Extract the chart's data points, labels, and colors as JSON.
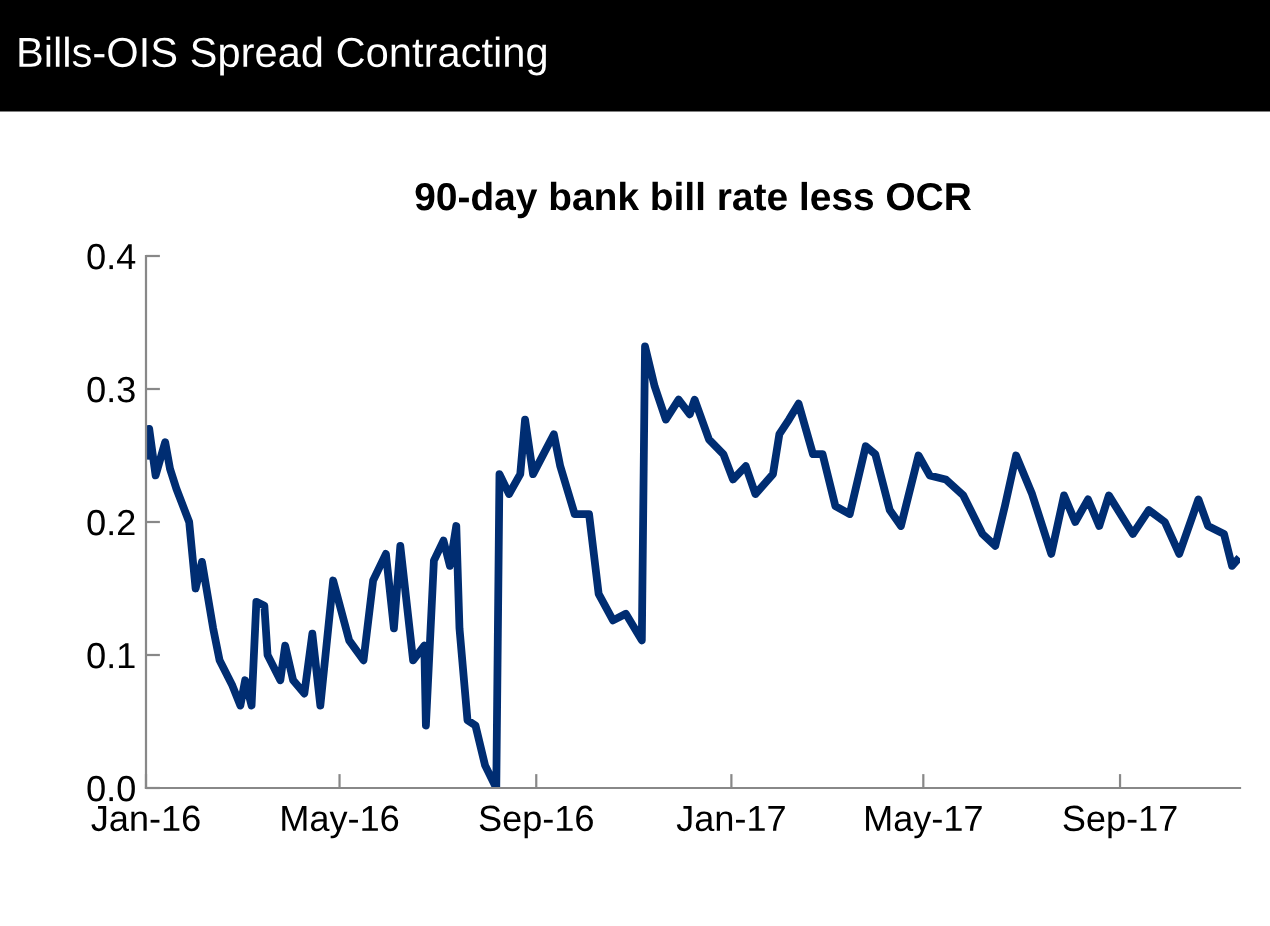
{
  "chart_data": {
    "type": "line",
    "title": "Bills-OIS Spread Contracting",
    "subtitle": "90-day bank bill rate less OCR",
    "x": [
      "2016-01-01",
      "2016-01-03",
      "2016-01-07",
      "2016-01-13",
      "2016-01-16",
      "2016-01-20",
      "2016-01-28",
      "2016-02-01",
      "2016-02-05",
      "2016-02-12",
      "2016-02-16",
      "2016-02-24",
      "2016-02-29",
      "2016-03-03",
      "2016-03-07",
      "2016-03-10",
      "2016-03-15",
      "2016-03-17",
      "2016-03-25",
      "2016-03-28",
      "2016-04-02",
      "2016-04-09",
      "2016-04-14",
      "2016-04-19",
      "2016-04-27",
      "2016-05-07",
      "2016-05-16",
      "2016-05-22",
      "2016-05-30",
      "2016-06-04",
      "2016-06-08",
      "2016-06-16",
      "2016-06-23",
      "2016-06-24",
      "2016-06-29",
      "2016-07-05",
      "2016-07-09",
      "2016-07-13",
      "2016-07-15",
      "2016-07-20",
      "2016-07-25",
      "2016-07-31",
      "2016-08-07",
      "2016-08-09",
      "2016-08-15",
      "2016-08-22",
      "2016-08-25",
      "2016-08-30",
      "2016-09-12",
      "2016-09-16",
      "2016-09-25",
      "2016-10-04",
      "2016-10-10",
      "2016-10-19",
      "2016-10-27",
      "2016-11-06",
      "2016-11-08",
      "2016-11-14",
      "2016-11-21",
      "2016-11-29",
      "2016-12-06",
      "2016-12-09",
      "2016-12-18",
      "2016-12-27",
      "2017-01-02",
      "2017-01-10",
      "2017-01-16",
      "2017-01-27",
      "2017-01-31",
      "2017-02-06",
      "2017-02-12",
      "2017-02-21",
      "2017-02-27",
      "2017-03-07",
      "2017-03-16",
      "2017-03-26",
      "2017-04-01",
      "2017-04-10",
      "2017-04-17",
      "2017-04-28",
      "2017-05-05",
      "2017-05-15",
      "2017-05-26",
      "2017-06-07",
      "2017-06-15",
      "2017-06-21",
      "2017-06-28",
      "2017-07-08",
      "2017-07-20",
      "2017-07-28",
      "2017-08-04",
      "2017-08-12",
      "2017-08-19",
      "2017-08-25",
      "2017-09-09",
      "2017-09-19",
      "2017-09-29",
      "2017-10-08",
      "2017-10-20",
      "2017-10-26",
      "2017-11-05",
      "2017-11-10",
      "2017-11-13"
    ],
    "series": [
      {
        "color": "#002d72",
        "values": [
          0.25,
          0.27,
          0.235,
          0.26,
          0.24,
          0.225,
          0.2,
          0.15,
          0.17,
          0.12,
          0.096,
          0.077,
          0.062,
          0.081,
          0.062,
          0.14,
          0.137,
          0.1,
          0.081,
          0.107,
          0.081,
          0.071,
          0.116,
          0.062,
          0.156,
          0.111,
          0.096,
          0.156,
          0.176,
          0.12,
          0.182,
          0.096,
          0.107,
          0.047,
          0.171,
          0.186,
          0.167,
          0.197,
          0.12,
          0.051,
          0.047,
          0.017,
          0.0,
          0.236,
          0.221,
          0.236,
          0.277,
          0.236,
          0.266,
          0.242,
          0.206,
          0.206,
          0.146,
          0.126,
          0.131,
          0.111,
          0.332,
          0.302,
          0.277,
          0.292,
          0.281,
          0.292,
          0.262,
          0.251,
          0.232,
          0.242,
          0.221,
          0.236,
          0.266,
          0.277,
          0.289,
          0.251,
          0.251,
          0.212,
          0.206,
          0.257,
          0.251,
          0.209,
          0.197,
          0.25,
          0.235,
          0.232,
          0.22,
          0.191,
          0.182,
          0.212,
          0.25,
          0.221,
          0.176,
          0.22,
          0.2,
          0.217,
          0.197,
          0.22,
          0.191,
          0.209,
          0.2,
          0.176,
          0.217,
          0.197,
          0.191,
          0.167,
          0.171
        ]
      }
    ],
    "xlim": [
      "2016-01-01",
      "2017-11-15"
    ],
    "xticks": [
      {
        "value": "2016-01-01",
        "label": "Jan-16"
      },
      {
        "value": "2016-05-01",
        "label": "May-16"
      },
      {
        "value": "2016-09-01",
        "label": "Sep-16"
      },
      {
        "value": "2017-01-01",
        "label": "Jan-17"
      },
      {
        "value": "2017-05-01",
        "label": "May-17"
      },
      {
        "value": "2017-09-01",
        "label": "Sep-17"
      }
    ],
    "ylim": [
      0,
      0.4
    ],
    "yticks": [
      {
        "value": 0,
        "label": "0.0"
      },
      {
        "value": 0.1,
        "label": "0.1"
      },
      {
        "value": 0.2,
        "label": "0.2"
      },
      {
        "value": 0.3,
        "label": "0.3"
      },
      {
        "value": 0.4,
        "label": "0.4"
      }
    ],
    "grid": false,
    "legend": false,
    "marker": "none",
    "line_style": "solid"
  }
}
